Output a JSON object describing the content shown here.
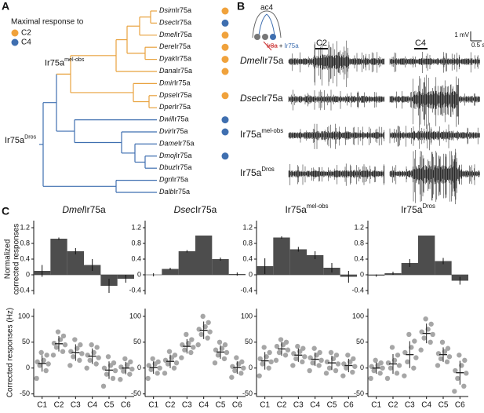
{
  "panel_labels": {
    "a": "A",
    "b": "B",
    "c": "C"
  },
  "tree": {
    "legend_title": "Maximal response to",
    "legend": [
      {
        "label": "C2",
        "color": "#f0a23c"
      },
      {
        "label": "C4",
        "color": "#3f6fb0"
      }
    ],
    "clade_labels": [
      {
        "base": "Ir75a",
        "sup": "mel-obs"
      },
      {
        "base": "Ir75a",
        "sup": "Dros"
      }
    ],
    "branch_colors": {
      "mel-obs": "#e8a23e",
      "other": "#3f6fb0"
    },
    "leaves": [
      {
        "species": "Dsim",
        "gene": "Ir75a",
        "response": "C2"
      },
      {
        "species": "Dsec",
        "gene": "Ir75a",
        "response": "C4"
      },
      {
        "species": "Dmel",
        "gene": "Ir75a",
        "response": "C2"
      },
      {
        "species": "Dere",
        "gene": "Ir75a",
        "response": "C2"
      },
      {
        "species": "Dyak",
        "gene": "Ir75a",
        "response": "C2"
      },
      {
        "species": "Dana",
        "gene": "Ir75a",
        "response": "C2"
      },
      {
        "species": "Dmir",
        "gene": "Ir75a",
        "response": null
      },
      {
        "species": "Dpse",
        "gene": "Ir75a",
        "response": "C2"
      },
      {
        "species": "Dper",
        "gene": "Ir75a",
        "response": null
      },
      {
        "species": "Dwil",
        "gene": "Ir75a",
        "response": "C4"
      },
      {
        "species": "Dvir",
        "gene": "Ir75a",
        "response": "C4"
      },
      {
        "species": "Dame",
        "gene": "Ir75a",
        "response": null
      },
      {
        "species": "Dmoj",
        "gene": "Ir75a",
        "response": "C4"
      },
      {
        "species": "Dbuz",
        "gene": "Ir75a",
        "response": null
      },
      {
        "species": "Dgri",
        "gene": "Ir75a",
        "response": null
      },
      {
        "species": "Dalb",
        "gene": "Ir75a",
        "response": null
      }
    ]
  },
  "recordings": {
    "receptor": "ac4",
    "construct": {
      "crossed": "Ir8a",
      "plus": "+",
      "gene": "Ir75a"
    },
    "scale": {
      "voltage": "1 mV",
      "time": "0.5 s"
    },
    "stimuli": [
      "C2",
      "C4"
    ],
    "rows": [
      {
        "species": "Dmel",
        "gene": "Ir75a"
      },
      {
        "species": "Dsec",
        "gene": "Ir75a"
      },
      {
        "base": "Ir75a",
        "sup": "mel-obs"
      },
      {
        "base": "Ir75a",
        "sup": "Dros"
      }
    ]
  },
  "chart_data": [
    {
      "type": "bar",
      "title": {
        "species": "Dmel",
        "gene": "Ir75a"
      },
      "ylabel": [
        "Normalized",
        "corrected responses"
      ],
      "values": [
        0.1,
        0.92,
        0.6,
        0.25,
        -0.28,
        -0.1
      ],
      "errors": [
        0.15,
        0.03,
        0.08,
        0.15,
        0.18,
        0.1
      ],
      "color": "#4d4d4d",
      "ylim": [
        -0.5,
        1.3
      ],
      "yticks": [
        1.2,
        0.8,
        0.4,
        0,
        -0.4
      ]
    },
    {
      "type": "bar",
      "title": {
        "species": "Dsec",
        "gene": "Ir75a"
      },
      "values": [
        0.0,
        0.15,
        0.6,
        1.0,
        0.4,
        0.02
      ],
      "errors": [
        0.04,
        0.03,
        0.03,
        0,
        0.04,
        0.04
      ],
      "color": "#4d4d4d",
      "ylim": [
        -0.5,
        1.3
      ],
      "yticks": [
        1.2,
        0.8,
        0.4,
        0,
        -0.4
      ]
    },
    {
      "type": "bar",
      "title": {
        "base": "Ir75a",
        "sup": "mel-obs"
      },
      "values": [
        0.22,
        0.95,
        0.65,
        0.5,
        0.18,
        -0.05
      ],
      "errors": [
        0.2,
        0.03,
        0.06,
        0.1,
        0.12,
        0.15
      ],
      "color": "#4d4d4d",
      "ylim": [
        -0.5,
        1.3
      ],
      "yticks": [
        1.2,
        0.8,
        0.4,
        0,
        -0.4
      ]
    },
    {
      "type": "bar",
      "title": {
        "base": "Ir75a",
        "sup": "Dros"
      },
      "values": [
        -0.02,
        0.04,
        0.3,
        1.0,
        0.35,
        -0.15
      ],
      "errors": [
        0.03,
        0.04,
        0.1,
        0,
        0.08,
        0.1
      ],
      "color": "#4d4d4d",
      "ylim": [
        -0.5,
        1.3
      ],
      "yticks": [
        1.2,
        0.8,
        0.4,
        0,
        -0.4
      ]
    },
    {
      "type": "dot",
      "ylabel": "Corrected responses (Hz)",
      "categories": [
        "C1",
        "C2",
        "C3",
        "C4",
        "C5",
        "C6"
      ],
      "points": [
        [
          -20,
          -5,
          5,
          8,
          12,
          15,
          25,
          30
        ],
        [
          25,
          32,
          40,
          45,
          48,
          55,
          62,
          70
        ],
        [
          5,
          15,
          22,
          28,
          32,
          38,
          45,
          55
        ],
        [
          0,
          8,
          15,
          20,
          25,
          30,
          40,
          45
        ],
        [
          -35,
          -20,
          -12,
          -5,
          0,
          5,
          10,
          22
        ],
        [
          -22,
          -12,
          -6,
          -2,
          2,
          6,
          12,
          18
        ]
      ],
      "means": [
        9,
        47,
        30,
        23,
        -4,
        0
      ],
      "sd": [
        16,
        15,
        16,
        15,
        17,
        12
      ],
      "color": "#a6a6a6",
      "ylim": [
        -55,
        115
      ],
      "yticks": [
        100,
        50,
        0,
        -50
      ]
    },
    {
      "type": "dot",
      "categories": [
        "C1",
        "C2",
        "C3",
        "C4",
        "C5",
        "C6"
      ],
      "points": [
        [
          -20,
          -10,
          -3,
          0,
          5,
          8,
          12,
          18
        ],
        [
          -10,
          0,
          8,
          10,
          15,
          20,
          25,
          32
        ],
        [
          20,
          30,
          35,
          40,
          45,
          48,
          55,
          65
        ],
        [
          45,
          58,
          65,
          70,
          75,
          80,
          88,
          100
        ],
        [
          10,
          18,
          25,
          30,
          35,
          38,
          45,
          50
        ],
        [
          -18,
          -10,
          -5,
          0,
          3,
          8,
          12,
          20
        ]
      ],
      "means": [
        1,
        13,
        42,
        73,
        31,
        1
      ],
      "sd": [
        12,
        13,
        14,
        17,
        13,
        12
      ],
      "color": "#a6a6a6",
      "ylim": [
        -55,
        115
      ],
      "yticks": [
        100,
        50,
        0,
        -50
      ]
    },
    {
      "type": "dot",
      "categories": [
        "C1",
        "C2",
        "C3",
        "C4",
        "C5",
        "C6"
      ],
      "points": [
        [
          -15,
          0,
          8,
          12,
          18,
          22,
          30,
          40
        ],
        [
          15,
          25,
          30,
          35,
          42,
          45,
          50,
          55
        ],
        [
          5,
          12,
          18,
          22,
          28,
          32,
          38,
          42
        ],
        [
          -5,
          5,
          10,
          15,
          20,
          25,
          30,
          38
        ],
        [
          -10,
          -5,
          0,
          8,
          12,
          18,
          25,
          30
        ],
        [
          -15,
          -8,
          0,
          3,
          8,
          12,
          18,
          25
        ]
      ],
      "means": [
        14,
        37,
        25,
        17,
        10,
        5
      ],
      "sd": [
        17,
        13,
        13,
        13,
        14,
        13
      ],
      "color": "#a6a6a6",
      "ylim": [
        -55,
        115
      ],
      "yticks": [
        100,
        50,
        0,
        -50
      ]
    },
    {
      "type": "dot",
      "categories": [
        "C1",
        "C2",
        "C3",
        "C4",
        "C5",
        "C6"
      ],
      "points": [
        [
          -20,
          -10,
          -5,
          0,
          3,
          5,
          10,
          15
        ],
        [
          -20,
          -10,
          0,
          5,
          10,
          15,
          25,
          40
        ],
        [
          -15,
          0,
          12,
          20,
          30,
          40,
          52,
          65
        ],
        [
          35,
          50,
          58,
          65,
          70,
          75,
          85,
          95
        ],
        [
          5,
          12,
          18,
          22,
          28,
          32,
          38,
          50
        ],
        [
          -45,
          -35,
          -20,
          -10,
          -5,
          5,
          15,
          25
        ]
      ],
      "means": [
        0,
        8,
        26,
        67,
        26,
        -9
      ],
      "sd": [
        11,
        19,
        26,
        19,
        14,
        23
      ],
      "color": "#a6a6a6",
      "ylim": [
        -55,
        115
      ],
      "yticks": [
        100,
        50,
        0,
        -50
      ]
    }
  ]
}
